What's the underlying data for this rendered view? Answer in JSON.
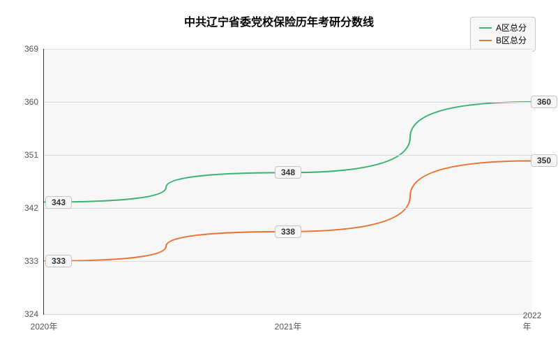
{
  "chart": {
    "type": "line",
    "title": "中共辽宁省委党校保险历年考研分数线",
    "title_fontsize": 16,
    "title_weight": "bold",
    "background_color": "#ffffff",
    "plot_background": "#f7f7f7",
    "border_color": "#333333",
    "grid_color": "#dcdcdc",
    "label_fontsize": 12,
    "xlim": [
      2020,
      2022
    ],
    "ylim": [
      324,
      369
    ],
    "ytick_step": 9,
    "yticks": [
      324,
      333,
      342,
      351,
      360,
      369
    ],
    "xticks": [
      "2020年",
      "2021年",
      "2022年"
    ],
    "line_width": 2,
    "legend_position": "top-right",
    "legend_bg": "#f7f7f7",
    "legend_border": "#c8c8c8",
    "series": [
      {
        "name": "A区总分",
        "color": "#3cb371",
        "x": [
          2020,
          2021,
          2022
        ],
        "y": [
          343,
          348,
          360
        ]
      },
      {
        "name": "B区总分",
        "color": "#e87434",
        "x": [
          2020,
          2021,
          2022
        ],
        "y": [
          333,
          338,
          350
        ]
      }
    ]
  }
}
